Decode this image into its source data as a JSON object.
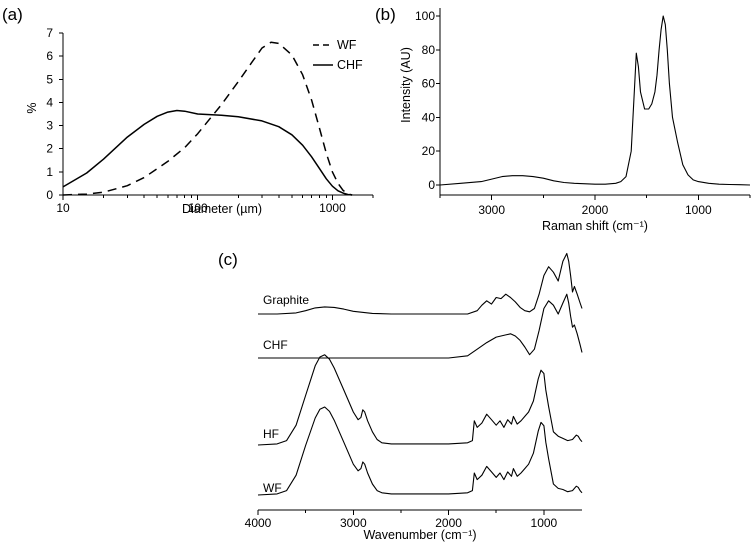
{
  "chart_data": [
    {
      "panel": "(a)",
      "type": "line",
      "xscale": "log",
      "xlabel": "Diameter (µm)",
      "ylabel": "%",
      "xlim": [
        10,
        2000
      ],
      "ylim": [
        0,
        7
      ],
      "xticks": [
        "10",
        "100",
        "1000"
      ],
      "yticks": [
        "0",
        "1",
        "2",
        "3",
        "4",
        "5",
        "6",
        "7"
      ],
      "legend": "top-right",
      "series": [
        {
          "name": "WF",
          "style": "dashed",
          "x": [
            10,
            15,
            20,
            30,
            40,
            60,
            80,
            100,
            150,
            200,
            250,
            300,
            350,
            400,
            500,
            600,
            700,
            800,
            900,
            1000,
            1100,
            1200,
            1300,
            1400
          ],
          "y": [
            0,
            0.04,
            0.12,
            0.4,
            0.75,
            1.45,
            2.05,
            2.65,
            3.9,
            4.9,
            5.7,
            6.35,
            6.6,
            6.55,
            6.05,
            5.2,
            4.1,
            2.9,
            1.8,
            1.0,
            0.5,
            0.2,
            0.05,
            0
          ]
        },
        {
          "name": "CHF",
          "style": "solid",
          "x": [
            10,
            15,
            20,
            30,
            40,
            50,
            60,
            70,
            80,
            100,
            150,
            200,
            300,
            400,
            500,
            600,
            700,
            800,
            900,
            1000,
            1100,
            1200,
            1300,
            1400
          ],
          "y": [
            0.35,
            0.95,
            1.55,
            2.5,
            3.05,
            3.4,
            3.58,
            3.65,
            3.62,
            3.5,
            3.45,
            3.38,
            3.2,
            2.95,
            2.6,
            2.15,
            1.65,
            1.15,
            0.7,
            0.38,
            0.18,
            0.08,
            0.02,
            0
          ]
        }
      ]
    },
    {
      "panel": "(b)",
      "type": "line",
      "xlabel": "Raman shift (cm⁻¹)",
      "ylabel": "Intensity (AU)",
      "xlim": [
        3500,
        500
      ],
      "ylim": [
        0,
        100
      ],
      "xticks": [
        "3000",
        "2000",
        "1000"
      ],
      "yticks": [
        "0",
        "20",
        "40",
        "60",
        "80",
        "100"
      ],
      "series": [
        {
          "x": [
            3500,
            3300,
            3100,
            3000,
            2900,
            2800,
            2700,
            2600,
            2500,
            2400,
            2300,
            2200,
            2000,
            1900,
            1800,
            1750,
            1700,
            1650,
            1620,
            1600,
            1580,
            1560,
            1520,
            1480,
            1450,
            1420,
            1400,
            1380,
            1360,
            1340,
            1320,
            1300,
            1280,
            1250,
            1200,
            1150,
            1100,
            1050,
            1000,
            900,
            800,
            700,
            600,
            500
          ],
          "y": [
            0,
            1,
            2,
            3.5,
            5,
            5.5,
            5.5,
            5,
            4,
            2.5,
            1.5,
            1,
            0.5,
            0.5,
            1,
            2,
            5,
            20,
            55,
            78,
            70,
            55,
            45,
            45,
            48,
            55,
            65,
            80,
            92,
            100,
            95,
            80,
            60,
            40,
            25,
            12,
            6,
            3,
            2,
            1,
            0.5,
            0.3,
            0.2,
            0
          ]
        }
      ]
    },
    {
      "panel": "(c)",
      "type": "line",
      "xlabel": "Wavenumber (cm⁻¹)",
      "xlim": [
        4000,
        600
      ],
      "xticks": [
        "4000",
        "3000",
        "2000",
        "1000"
      ],
      "series": [
        {
          "name": "Graphite",
          "x": [
            4000,
            3800,
            3600,
            3500,
            3400,
            3300,
            3200,
            3100,
            3000,
            2800,
            2600,
            2400,
            2200,
            2000,
            1800,
            1700,
            1650,
            1600,
            1550,
            1500,
            1450,
            1400,
            1350,
            1300,
            1250,
            1200,
            1150,
            1100,
            1050,
            1000,
            950,
            900,
            850,
            800,
            760,
            740,
            720,
            700,
            680,
            650,
            620,
            600
          ],
          "y": [
            0,
            0,
            0.1,
            0.3,
            0.55,
            0.65,
            0.6,
            0.45,
            0.25,
            0.05,
            0,
            0,
            0,
            0,
            0,
            0.3,
            0.8,
            1.2,
            0.9,
            1.5,
            1.4,
            1.8,
            1.5,
            1.1,
            0.6,
            0.3,
            0.2,
            0.5,
            1.8,
            3.5,
            4.3,
            3.8,
            3,
            4.8,
            5.5,
            4.8,
            3.5,
            2,
            2.5,
            1.8,
            1,
            0.5
          ]
        },
        {
          "name": "CHF",
          "x": [
            4000,
            3800,
            3600,
            3400,
            3200,
            3000,
            2800,
            2600,
            2400,
            2200,
            2000,
            1800,
            1700,
            1600,
            1500,
            1400,
            1350,
            1300,
            1250,
            1200,
            1150,
            1100,
            1050,
            1000,
            950,
            900,
            850,
            800,
            760,
            740,
            720,
            700,
            680,
            650,
            620,
            600
          ],
          "y": [
            0,
            0,
            0,
            0,
            0,
            0,
            0,
            0,
            0,
            0,
            0,
            0.2,
            0.8,
            1.4,
            1.9,
            2.1,
            2.2,
            2,
            1.6,
            1,
            0.3,
            0.8,
            2.5,
            4.5,
            5.2,
            4.8,
            4,
            5,
            5.8,
            5,
            3.8,
            2.8,
            3,
            2.2,
            1.2,
            0.5
          ]
        },
        {
          "name": "HF",
          "x": [
            4000,
            3800,
            3700,
            3600,
            3500,
            3400,
            3350,
            3300,
            3250,
            3200,
            3100,
            3000,
            2950,
            2920,
            2900,
            2880,
            2850,
            2800,
            2750,
            2700,
            2600,
            2400,
            2200,
            2000,
            1800,
            1750,
            1730,
            1700,
            1650,
            1600,
            1550,
            1500,
            1460,
            1420,
            1380,
            1340,
            1320,
            1280,
            1240,
            1200,
            1160,
            1110,
            1060,
            1030,
            1000,
            980,
            950,
            900,
            850,
            800,
            750,
            700,
            660,
            640,
            620,
            600
          ],
          "y": [
            0,
            0.1,
            0.4,
            1.8,
            4.5,
            7.2,
            8,
            8.2,
            7.8,
            7,
            5,
            3,
            2.3,
            2.5,
            3.2,
            3,
            2.2,
            1.2,
            0.5,
            0.2,
            0.1,
            0.1,
            0.1,
            0.1,
            0.2,
            0.4,
            2.2,
            1.6,
            2,
            2.8,
            2.3,
            1.8,
            2.2,
            1.6,
            2.3,
            1.9,
            2.6,
            1.9,
            2.2,
            2.6,
            3,
            4,
            6,
            6.8,
            6.5,
            5,
            3.5,
            1.2,
            0.8,
            0.6,
            0.4,
            0.5,
            0.9,
            0.8,
            0.5,
            0.3
          ]
        },
        {
          "name": "WF",
          "x": [
            4000,
            3800,
            3700,
            3600,
            3500,
            3400,
            3350,
            3300,
            3250,
            3200,
            3100,
            3000,
            2950,
            2920,
            2900,
            2880,
            2850,
            2800,
            2750,
            2700,
            2600,
            2400,
            2200,
            2000,
            1800,
            1750,
            1730,
            1700,
            1650,
            1600,
            1550,
            1500,
            1460,
            1420,
            1380,
            1340,
            1320,
            1280,
            1240,
            1200,
            1160,
            1110,
            1060,
            1030,
            1000,
            980,
            950,
            900,
            850,
            800,
            750,
            700,
            660,
            640,
            620,
            600
          ],
          "y": [
            0,
            0.1,
            0.4,
            1.8,
            4.5,
            7,
            7.8,
            8,
            7.6,
            6.8,
            4.8,
            2.8,
            2.2,
            2.4,
            3,
            2.8,
            2,
            1,
            0.4,
            0.2,
            0.1,
            0.1,
            0.1,
            0.1,
            0.2,
            0.4,
            2,
            1.4,
            1.8,
            2.6,
            2.1,
            1.6,
            2,
            1.4,
            2.1,
            1.7,
            2.4,
            1.7,
            2,
            2.4,
            2.8,
            3.8,
            5.8,
            6.6,
            6.3,
            4.8,
            3.3,
            1,
            0.6,
            0.5,
            0.3,
            0.4,
            0.8,
            0.7,
            0.4,
            0.2
          ]
        }
      ]
    }
  ]
}
